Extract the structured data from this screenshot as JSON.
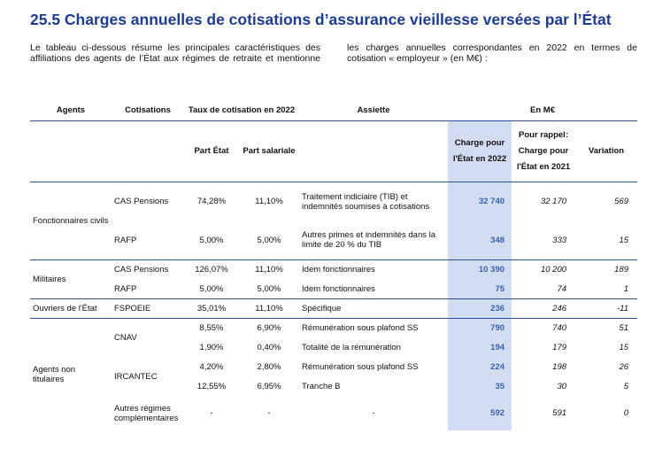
{
  "header": {
    "title": "25.5 Charges annuelles de cotisations d’assurance vieillesse versées par l’État",
    "intro": "Le tableau ci-dessous résume les principales caractéristiques des affiliations des agents de l’État aux régimes de retraite et mentionne les charges annuelles correspondantes en 2022 en termes de cotisation « employeur » (en M€) :"
  },
  "table": {
    "head1": {
      "agents": "Agents",
      "cotisations": "Cotisations",
      "taux": "Taux de cotisation en 2022",
      "assiette": "Assiette",
      "en_meur": "En M€"
    },
    "head2": {
      "part_etat": "Part État",
      "part_salariale": "Part salariale",
      "charge_2022": "Charge pour l'État en 2022",
      "charge_2021": "Pour rappel: Charge pour l'État en 2021",
      "variation": "Variation"
    },
    "groups": [
      {
        "agents": "Fonctionnaires civils",
        "rows": [
          {
            "cotisation": "CAS Pensions",
            "part_etat": "74,28%",
            "part_salariale": "11,10%",
            "assiette": "Traitement indiciaire (TIB) et indemnités soumises à cotisations",
            "charge_2022": "32 740",
            "charge_2021": "32 170",
            "variation": "569"
          },
          {
            "cotisation": "RAFP",
            "part_etat": "5,00%",
            "part_salariale": "5,00%",
            "assiette": "Autres primes et indemnités dans la limite de 20 % du TIB",
            "charge_2022": "348",
            "charge_2021": "333",
            "variation": "15"
          }
        ]
      },
      {
        "agents": "Militaires",
        "rows": [
          {
            "cotisation": "CAS Pensions",
            "part_etat": "126,07%",
            "part_salariale": "11,10%",
            "assiette": "Idem fonctionnaires",
            "charge_2022": "10 390",
            "charge_2021": "10 200",
            "variation": "189"
          },
          {
            "cotisation": "RAFP",
            "part_etat": "5,00%",
            "part_salariale": "5,00%",
            "assiette": "Idem fonctionnaires",
            "charge_2022": "75",
            "charge_2021": "74",
            "variation": "1"
          }
        ]
      },
      {
        "agents": "Ouvriers de l'État",
        "rows": [
          {
            "cotisation": "FSPOEIE",
            "part_etat": "35,01%",
            "part_salariale": "11,10%",
            "assiette": "Spécifique",
            "charge_2022": "236",
            "charge_2021": "246",
            "variation": "-11"
          }
        ]
      },
      {
        "agents": "Agents non titulaires",
        "rows": [
          {
            "cotisation": "CNAV",
            "part_etat": "8,55%",
            "part_salariale": "6,90%",
            "assiette": "Rémunération sous plafond SS",
            "charge_2022": "790",
            "charge_2021": "740",
            "variation": "51"
          },
          {
            "part_etat": "1,90%",
            "part_salariale": "0,40%",
            "assiette": "Totalité de la rémunération",
            "charge_2022": "194",
            "charge_2021": "179",
            "variation": "15"
          },
          {
            "cotisation": "IRCANTEC",
            "part_etat": "4,20%",
            "part_salariale": "2,80%",
            "assiette": "Rémunération sous plafond SS",
            "charge_2022": "224",
            "charge_2021": "198",
            "variation": "26"
          },
          {
            "part_etat": "12,55%",
            "part_salariale": "6,95%",
            "assiette": "Tranche B",
            "charge_2022": "35",
            "charge_2021": "30",
            "variation": "5"
          },
          {
            "cotisation": "Autres régimes complémentaires",
            "part_etat": "-",
            "part_salariale": "-",
            "assiette": "-",
            "charge_2022": "592",
            "charge_2021": "591",
            "variation": "0"
          }
        ]
      }
    ]
  }
}
